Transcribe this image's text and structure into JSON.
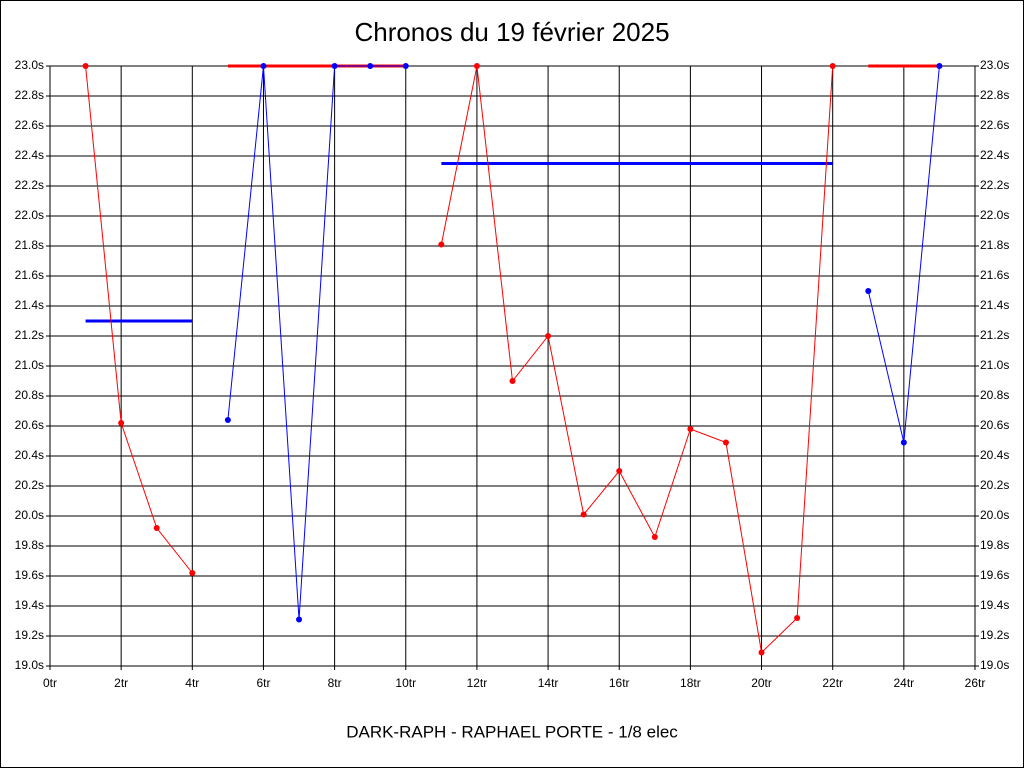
{
  "chart_data": {
    "type": "line",
    "title": "Chronos du 19 février 2025",
    "footer": "DARK-RAPH - RAPHAEL PORTE - 1/8 elec",
    "xlim": [
      0,
      26
    ],
    "xticks": [
      {
        "value": 0,
        "label": "0tr"
      },
      {
        "value": 2,
        "label": "2tr"
      },
      {
        "value": 4,
        "label": "4tr"
      },
      {
        "value": 6,
        "label": "6tr"
      },
      {
        "value": 8,
        "label": "8tr"
      },
      {
        "value": 10,
        "label": "10tr"
      },
      {
        "value": 12,
        "label": "12tr"
      },
      {
        "value": 14,
        "label": "14tr"
      },
      {
        "value": 16,
        "label": "16tr"
      },
      {
        "value": 18,
        "label": "18tr"
      },
      {
        "value": 20,
        "label": "20tr"
      },
      {
        "value": 22,
        "label": "22tr"
      },
      {
        "value": 24,
        "label": "24tr"
      },
      {
        "value": 26,
        "label": "26tr"
      }
    ],
    "ylim": [
      19.0,
      23.0
    ],
    "yticks": [
      {
        "value": 19.0,
        "label": "19.0s"
      },
      {
        "value": 19.2,
        "label": "19.2s"
      },
      {
        "value": 19.4,
        "label": "19.4s"
      },
      {
        "value": 19.6,
        "label": "19.6s"
      },
      {
        "value": 19.8,
        "label": "19.8s"
      },
      {
        "value": 20.0,
        "label": "20.0s"
      },
      {
        "value": 20.2,
        "label": "20.2s"
      },
      {
        "value": 20.4,
        "label": "20.4s"
      },
      {
        "value": 20.6,
        "label": "20.6s"
      },
      {
        "value": 20.8,
        "label": "20.8s"
      },
      {
        "value": 21.0,
        "label": "21.0s"
      },
      {
        "value": 21.2,
        "label": "21.2s"
      },
      {
        "value": 21.4,
        "label": "21.4s"
      },
      {
        "value": 21.6,
        "label": "21.6s"
      },
      {
        "value": 21.8,
        "label": "21.8s"
      },
      {
        "value": 22.0,
        "label": "22.0s"
      },
      {
        "value": 22.2,
        "label": "22.2s"
      },
      {
        "value": 22.4,
        "label": "22.4s"
      },
      {
        "value": 22.6,
        "label": "22.6s"
      },
      {
        "value": 22.8,
        "label": "22.8s"
      },
      {
        "value": 23.0,
        "label": "23.0s"
      }
    ],
    "grid": true,
    "series": [
      {
        "color": "#ff0000",
        "x": [
          1,
          2,
          3,
          4
        ],
        "values": [
          23.0,
          20.62,
          19.92,
          19.62
        ],
        "mean": 21.3,
        "mean_color": "#0000ff"
      },
      {
        "color": "#0000ff",
        "x": [
          5,
          6,
          7,
          8,
          9,
          10
        ],
        "values": [
          20.64,
          23.0,
          19.31,
          23.0,
          23.0,
          23.0
        ],
        "mean": 23.0,
        "mean_color": "#ff0000"
      },
      {
        "color": "#ff0000",
        "x": [
          11,
          12,
          13,
          14,
          15,
          16,
          17,
          18,
          19,
          20,
          21,
          22
        ],
        "values": [
          21.81,
          23.0,
          20.9,
          21.2,
          20.01,
          20.3,
          19.86,
          20.58,
          20.49,
          19.09,
          19.32,
          23.0
        ],
        "mean": 22.35,
        "mean_color": "#0000ff"
      },
      {
        "color": "#0000ff",
        "x": [
          23,
          24,
          25
        ],
        "values": [
          21.5,
          20.49,
          23.0
        ],
        "mean": 23.0,
        "mean_color": "#ff0000"
      }
    ]
  }
}
